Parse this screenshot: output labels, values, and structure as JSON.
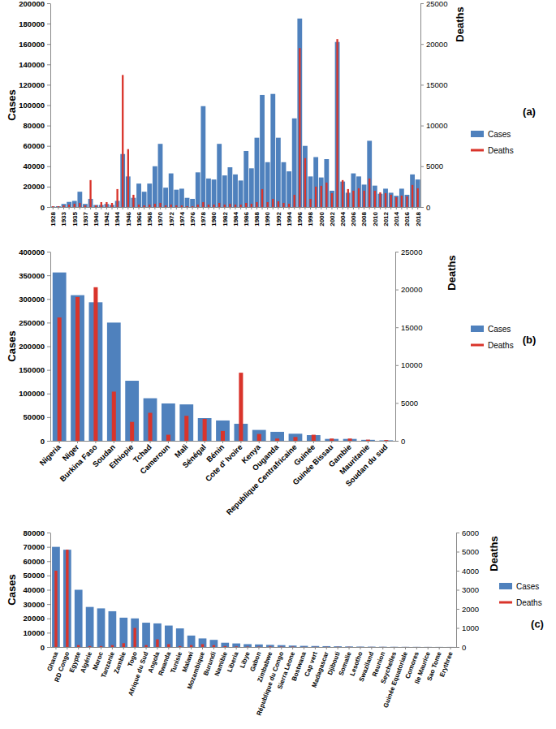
{
  "chart_data": [
    {
      "type": "bar",
      "annotation": "(a)",
      "y_label": "Cases",
      "y2_label": "Deaths",
      "legend": "right",
      "categories": [
        "1928",
        null,
        "1933",
        null,
        "1935",
        null,
        "1937",
        null,
        "1940",
        null,
        "1942",
        null,
        "1944",
        null,
        "1946",
        null,
        "1966",
        null,
        "1968",
        null,
        "1970",
        null,
        "1972",
        null,
        "1974",
        null,
        "1976",
        null,
        "1978",
        null,
        "1980",
        null,
        "1982",
        null,
        "1984",
        null,
        "1986",
        null,
        "1988",
        null,
        "1990",
        null,
        "1992",
        null,
        "1994",
        null,
        "1996",
        null,
        "1998",
        null,
        "2000",
        null,
        "2002",
        null,
        "2004",
        null,
        "2006",
        null,
        "2008",
        null,
        "2010",
        null,
        "2012",
        null,
        "2014",
        null,
        "2016",
        null,
        "2018"
      ],
      "series": [
        {
          "name": "Cases",
          "color": "#4f81bd",
          "values": [
            500,
            800,
            3000,
            5000,
            6000,
            15000,
            3000,
            8000,
            2000,
            2000,
            3000,
            2000,
            6000,
            52000,
            30000,
            9000,
            23000,
            15000,
            23000,
            40000,
            62000,
            19000,
            33000,
            17000,
            18000,
            9000,
            8000,
            34000,
            99000,
            28000,
            27000,
            62000,
            31000,
            39000,
            32000,
            26000,
            55000,
            38000,
            68000,
            110000,
            44000,
            111000,
            68000,
            44000,
            35000,
            87000,
            185000,
            60000,
            30000,
            49000,
            29000,
            47000,
            16000,
            162000,
            25000,
            14000,
            33000,
            30000,
            22000,
            65000,
            21000,
            13000,
            18000,
            14000,
            11000,
            18000,
            12000,
            32000,
            27000
          ]
        },
        {
          "name": "Deaths",
          "color": "#d9342b",
          "axis": "y2",
          "values": [
            100,
            100,
            200,
            300,
            400,
            500,
            200,
            3300,
            200,
            600,
            600,
            500,
            2200,
            16200,
            7100,
            1500,
            300,
            200,
            300,
            400,
            500,
            200,
            300,
            200,
            200,
            100,
            100,
            300,
            600,
            300,
            300,
            500,
            300,
            400,
            300,
            300,
            500,
            400,
            600,
            2200,
            600,
            1000,
            700,
            500,
            400,
            1500,
            19500,
            6000,
            1000,
            2500,
            2600,
            3000,
            1700,
            20600,
            3300,
            2200,
            2000,
            2300,
            2000,
            3500,
            2000,
            1800,
            1700,
            1500,
            1200,
            1400,
            1300,
            2700,
            2300
          ]
        }
      ],
      "ylim": [
        0,
        200000
      ],
      "yticks": [
        0,
        20000,
        40000,
        60000,
        80000,
        100000,
        120000,
        140000,
        160000,
        180000,
        200000
      ],
      "y2lim": [
        0,
        25000
      ],
      "y2ticks": [
        0,
        5000,
        10000,
        15000,
        20000,
        25000
      ]
    },
    {
      "type": "bar",
      "annotation": "(b)",
      "y_label": "Cases",
      "y2_label": "Deaths",
      "legend": "right",
      "categories": [
        "Nigeria",
        "Niger",
        "Burkina Faso",
        "Soudan",
        "Ethiopie",
        "Tchad",
        "Cameroun",
        "Mali",
        "Sénégal",
        "Bénin",
        "Cote d' Ivoire",
        "Kenya",
        "Ouganda",
        "Republique Centrafricaine",
        "Guinée",
        "Guinée Bissau",
        "Gambie",
        "Mauritanie",
        "Soudan du sud"
      ],
      "series": [
        {
          "name": "Cases",
          "color": "#4f81bd",
          "values": [
            356000,
            308000,
            293000,
            250000,
            127000,
            90000,
            79000,
            77000,
            48000,
            43000,
            36000,
            23000,
            19000,
            15000,
            12000,
            4000,
            4000,
            2000,
            1000
          ]
        },
        {
          "name": "Deaths",
          "color": "#d9342b",
          "axis": "y2",
          "values": [
            16300,
            19000,
            20300,
            6500,
            2500,
            3700,
            800,
            3300,
            2900,
            1300,
            9000,
            900,
            300,
            500,
            800,
            300,
            300,
            150,
            100
          ]
        }
      ],
      "ylim": [
        0,
        400000
      ],
      "yticks": [
        0,
        50000,
        100000,
        150000,
        200000,
        250000,
        300000,
        350000,
        400000
      ],
      "y2lim": [
        0,
        25000
      ],
      "y2ticks": [
        0,
        5000,
        10000,
        15000,
        20000,
        25000
      ]
    },
    {
      "type": "bar",
      "annotation": "(c)",
      "y_label": "Cases",
      "y2_label": "Deaths",
      "legend": "right",
      "categories": [
        "Ghana",
        "RD Congo",
        "Egypte",
        "Algérie",
        "Maroc",
        "Tanzanie",
        "Zambie",
        "Togo",
        "Afrique du Sud",
        "Angola",
        "Rwanda",
        "Tunisie",
        "Malawi",
        "Mozambique",
        "Burundi",
        "Namibie",
        "Liberia",
        "Libye",
        "Gabon",
        "Zimbabwe",
        "République du Congo",
        "Sierra Leone",
        "Bostwana",
        "Cap vert",
        "Madagascar",
        "Djibouti",
        "Somalie",
        "Lesotho",
        "Swaziland",
        "Reunion",
        "Seychelles",
        "Guinée Equatoriale",
        "Comores",
        "Ile Maurice",
        "Sao Tome",
        "Erythree"
      ],
      "series": [
        {
          "name": "Cases",
          "color": "#4f81bd",
          "values": [
            70000,
            68000,
            40000,
            28000,
            27000,
            25000,
            20500,
            20000,
            17000,
            16500,
            15000,
            13000,
            8000,
            6000,
            5000,
            3000,
            2500,
            2000,
            1800,
            1500,
            1300,
            1000,
            800,
            700,
            600,
            500,
            400,
            300,
            250,
            200,
            150,
            120,
            100,
            80,
            60,
            50
          ]
        },
        {
          "name": "Deaths",
          "color": "#d9342b",
          "axis": "y2",
          "values": [
            4000,
            5100,
            100,
            50,
            50,
            100,
            200,
            1000,
            100,
            400,
            150,
            50,
            100,
            150,
            100,
            50,
            30,
            20,
            20,
            30,
            20,
            20,
            10,
            10,
            10,
            10,
            10,
            5,
            5,
            5,
            3,
            3,
            2,
            2,
            1,
            1
          ]
        }
      ],
      "ylim": [
        0,
        80000
      ],
      "yticks": [
        0,
        10000,
        20000,
        30000,
        40000,
        50000,
        60000,
        70000,
        80000
      ],
      "y2lim": [
        0,
        6000
      ],
      "y2ticks": [
        0,
        1000,
        2000,
        3000,
        4000,
        5000,
        6000
      ]
    }
  ]
}
